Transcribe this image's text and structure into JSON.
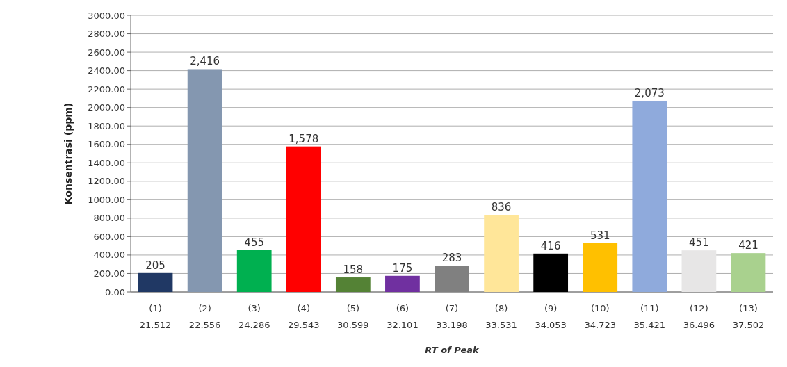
{
  "chart_data": {
    "type": "bar",
    "xlabel": "RT of Peak",
    "ylabel": "Konsentrasi (ppm)",
    "categories": [
      "(1)\n21.512",
      "(2)\n22.556",
      "(3)\n24.286",
      "(4)\n29.543",
      "(5)\n30.599",
      "(6)\n32.101",
      "(7)\n33.198",
      "(8)\n33.531",
      "(9)\n34.053",
      "(10)\n34.723",
      "(11)\n35.421",
      "(12)\n36.496",
      "(13)\n37.502"
    ],
    "values": [
      205,
      2416,
      455,
      1578,
      158,
      175,
      283,
      836,
      416,
      531,
      2073,
      451,
      421
    ],
    "value_labels": [
      "205",
      "2,416",
      "455",
      "1,578",
      "158",
      "175",
      "283",
      "836",
      "416",
      "531",
      "2,073",
      "451",
      "421"
    ],
    "colors": [
      "#203864",
      "#8497b0",
      "#00b050",
      "#ff0000",
      "#548235",
      "#7030a0",
      "#808080",
      "#ffe699",
      "#000000",
      "#ffc000",
      "#8faadc",
      "#e7e6e6",
      "#a9d18e"
    ],
    "ylim": [
      0,
      3000
    ],
    "yticks": [
      {
        "value": 0,
        "label": "0.00"
      },
      {
        "value": 200,
        "label": "200.00"
      },
      {
        "value": 400,
        "label": "400.00"
      },
      {
        "value": 600,
        "label": "600.00"
      },
      {
        "value": 800,
        "label": "800.00"
      },
      {
        "value": 1000,
        "label": "1000.00"
      },
      {
        "value": 1200,
        "label": "1200.00"
      },
      {
        "value": 1400,
        "label": "1400.00"
      },
      {
        "value": 1600,
        "label": "1600.00"
      },
      {
        "value": 1800,
        "label": "1800.00"
      },
      {
        "value": 2000,
        "label": "2000.00"
      },
      {
        "value": 2200,
        "label": "2200.00"
      },
      {
        "value": 2400,
        "label": "2400.00"
      },
      {
        "value": 2600,
        "label": "2600.00"
      },
      {
        "value": 2800,
        "label": "2800.00"
      },
      {
        "value": 3000,
        "label": "3000.00"
      }
    ],
    "grid": "y"
  }
}
